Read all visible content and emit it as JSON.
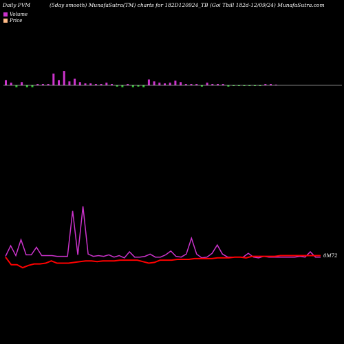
{
  "header": {
    "left": "Daily PVM",
    "middle": "(5day smooth) MunafaSutra(TM) charts for 182D120924_TB",
    "right": "(Goi  Tbill 182d-12/09/24) MunafaSutra.com"
  },
  "legend": [
    {
      "label": "Volume",
      "color": "#cc33cc"
    },
    {
      "label": "Price",
      "color": "#ffbb88"
    }
  ],
  "colors": {
    "volume_up": "#cc33cc",
    "volume_down": "#33cc33",
    "pvm_line": "#cc33cc",
    "price_line": "#ff0000",
    "baseline": "#ffffff"
  },
  "chart_data": {
    "type": "line",
    "end_label": "0M72",
    "volume_bars": [
      {
        "v": 8,
        "d": "up"
      },
      {
        "v": 4,
        "d": "up"
      },
      {
        "v": 3,
        "d": "down"
      },
      {
        "v": 5,
        "d": "up"
      },
      {
        "v": 3,
        "d": "down"
      },
      {
        "v": 3,
        "d": "down"
      },
      {
        "v": 2,
        "d": "up"
      },
      {
        "v": 2,
        "d": "up"
      },
      {
        "v": 2,
        "d": "up"
      },
      {
        "v": 18,
        "d": "up"
      },
      {
        "v": 8,
        "d": "up"
      },
      {
        "v": 22,
        "d": "up"
      },
      {
        "v": 6,
        "d": "up"
      },
      {
        "v": 10,
        "d": "up"
      },
      {
        "v": 5,
        "d": "up"
      },
      {
        "v": 3,
        "d": "up"
      },
      {
        "v": 3,
        "d": "up"
      },
      {
        "v": 2,
        "d": "up"
      },
      {
        "v": 2,
        "d": "up"
      },
      {
        "v": 4,
        "d": "up"
      },
      {
        "v": 2,
        "d": "up"
      },
      {
        "v": 2,
        "d": "down"
      },
      {
        "v": 3,
        "d": "down"
      },
      {
        "v": 2,
        "d": "up"
      },
      {
        "v": 3,
        "d": "down"
      },
      {
        "v": 2,
        "d": "down"
      },
      {
        "v": 3,
        "d": "down"
      },
      {
        "v": 9,
        "d": "up"
      },
      {
        "v": 6,
        "d": "up"
      },
      {
        "v": 4,
        "d": "up"
      },
      {
        "v": 3,
        "d": "up"
      },
      {
        "v": 4,
        "d": "up"
      },
      {
        "v": 7,
        "d": "up"
      },
      {
        "v": 5,
        "d": "up"
      },
      {
        "v": 2,
        "d": "up"
      },
      {
        "v": 2,
        "d": "up"
      },
      {
        "v": 2,
        "d": "up"
      },
      {
        "v": 2,
        "d": "down"
      },
      {
        "v": 4,
        "d": "up"
      },
      {
        "v": 2,
        "d": "up"
      },
      {
        "v": 2,
        "d": "up"
      },
      {
        "v": 2,
        "d": "up"
      },
      {
        "v": 2,
        "d": "down"
      },
      {
        "v": 1,
        "d": "down"
      },
      {
        "v": 1,
        "d": "down"
      },
      {
        "v": 1,
        "d": "down"
      },
      {
        "v": 1,
        "d": "down"
      },
      {
        "v": 1,
        "d": "down"
      },
      {
        "v": 1,
        "d": "down"
      },
      {
        "v": 2,
        "d": "up"
      },
      {
        "v": 2,
        "d": "up"
      },
      {
        "v": 1,
        "d": "up"
      }
    ],
    "pvm_series": [
      14,
      28,
      15,
      36,
      16,
      16,
      26,
      15,
      15,
      15,
      14,
      14,
      14,
      74,
      16,
      80,
      17,
      14,
      15,
      14,
      16,
      13,
      15,
      12,
      20,
      13,
      13,
      14,
      17,
      13,
      13,
      16,
      21,
      14,
      13,
      17,
      38,
      17,
      12,
      13,
      18,
      29,
      17,
      13,
      13,
      13,
      13,
      18,
      13,
      12,
      14,
      13,
      13,
      13,
      13,
      13,
      13,
      14,
      13,
      20,
      13,
      13
    ],
    "price_series": [
      13,
      3,
      3,
      -1,
      2,
      4,
      4,
      5,
      8,
      5,
      5,
      5,
      6,
      7,
      8,
      8,
      7,
      8,
      8,
      8,
      9,
      9,
      9,
      9,
      7,
      5,
      6,
      9,
      9,
      9,
      10,
      10,
      10,
      11,
      11,
      11,
      11,
      12,
      12,
      12,
      13,
      13,
      12,
      14,
      14,
      14,
      14,
      14,
      15,
      15,
      15,
      15,
      15,
      15,
      15,
      15
    ]
  }
}
